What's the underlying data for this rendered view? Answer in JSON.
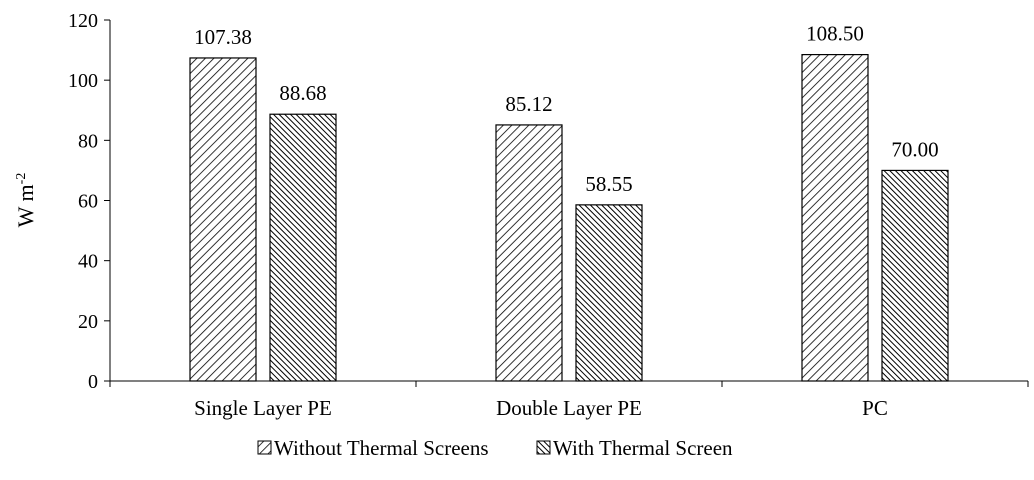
{
  "chart_data": {
    "type": "bar",
    "title": "",
    "xlabel": "",
    "ylabel": "W m",
    "ylabel_sup": "-2",
    "ylim": [
      0,
      120
    ],
    "yticks": [
      0,
      20,
      40,
      60,
      80,
      100,
      120
    ],
    "categories": [
      "Single Layer PE",
      "Double Layer PE",
      "PC"
    ],
    "series": [
      {
        "name": "Without Thermal Screens",
        "values": [
          107.38,
          85.12,
          108.5
        ],
        "labels": [
          "107.38",
          "85.12",
          "108.50"
        ],
        "pattern": "fine-diagonal-hatch"
      },
      {
        "name": "With Thermal Screen",
        "values": [
          88.68,
          58.55,
          70.0
        ],
        "labels": [
          "88.68",
          "58.55",
          "70.00"
        ],
        "pattern": "dense-diagonal-hatch"
      }
    ],
    "legend_position": "bottom-center",
    "grid": false
  }
}
